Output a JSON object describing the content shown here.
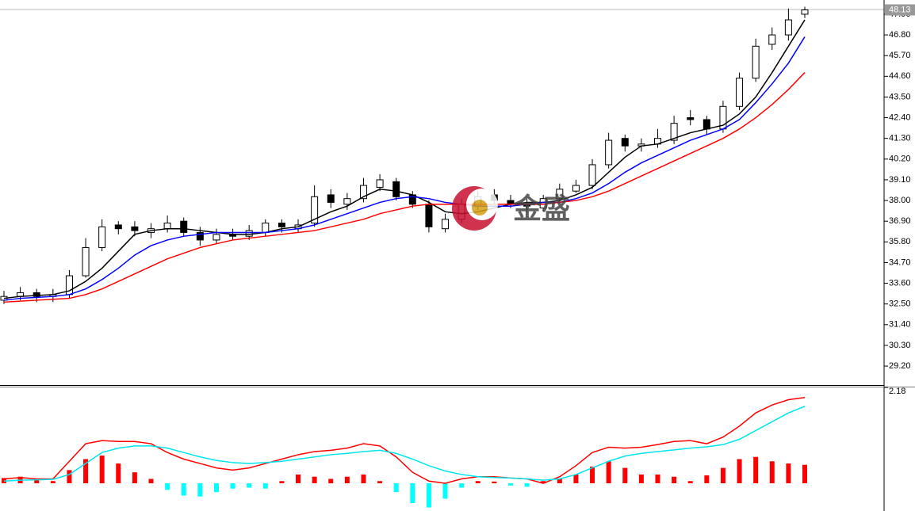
{
  "chart_data": [
    {
      "type": "candlestick",
      "watermark": "金盛",
      "last_price": 48.13,
      "ylim": [
        28.15,
        48.15
      ],
      "yticks": [
        {
          "value": 29.2,
          "label": "29.20"
        },
        {
          "value": 30.3,
          "label": "30.30"
        },
        {
          "value": 31.4,
          "label": "31.40"
        },
        {
          "value": 32.5,
          "label": "32.50"
        },
        {
          "value": 33.6,
          "label": "33.60"
        },
        {
          "value": 34.7,
          "label": "34.70"
        },
        {
          "value": 35.8,
          "label": "35.80"
        },
        {
          "value": 36.9,
          "label": "36.90"
        },
        {
          "value": 38,
          "label": "38.00"
        },
        {
          "value": 39.1,
          "label": "39.10"
        },
        {
          "value": 40.2,
          "label": "40.20"
        },
        {
          "value": 41.3,
          "label": "41.30"
        },
        {
          "value": 42.4,
          "label": "42.40"
        },
        {
          "value": 43.5,
          "label": "43.50"
        },
        {
          "value": 44.6,
          "label": "44.60"
        },
        {
          "value": 45.7,
          "label": "45.70"
        },
        {
          "value": 46.8,
          "label": "46.80"
        },
        {
          "value": 47.9,
          "label": "47.90"
        }
      ],
      "open": [
        32.7,
        32.9,
        33.1,
        32.9,
        33.0,
        34.0,
        35.5,
        36.7,
        36.6,
        36.3,
        36.5,
        36.9,
        36.3,
        35.9,
        36.2,
        36.1,
        36.3,
        36.8,
        36.5,
        36.8,
        38.3,
        37.8,
        38.1,
        38.7,
        39.0,
        38.3,
        37.8,
        36.5,
        37.0,
        37.7,
        38.3,
        38.0,
        37.8,
        37.6,
        38.1,
        38.5,
        38.8,
        39.9,
        41.3,
        40.9,
        41.0,
        41.2,
        42.4,
        42.3,
        41.8,
        43.0,
        44.5,
        46.3,
        46.8,
        47.9
      ],
      "high": [
        33.2,
        33.4,
        33.3,
        33.3,
        34.3,
        36.0,
        37.0,
        36.9,
        36.9,
        36.8,
        37.2,
        37.1,
        36.6,
        36.5,
        36.5,
        36.7,
        37.0,
        37.0,
        37.0,
        38.8,
        38.6,
        38.4,
        39.2,
        39.4,
        39.2,
        38.5,
        38.0,
        37.3,
        38.1,
        38.5,
        38.6,
        38.3,
        38.1,
        38.3,
        38.9,
        39.1,
        40.2,
        41.6,
        41.5,
        41.3,
        41.8,
        42.5,
        42.8,
        42.5,
        43.3,
        44.8,
        46.6,
        47.2,
        48.2,
        48.3
      ],
      "low": [
        32.5,
        32.7,
        32.6,
        32.6,
        32.8,
        33.9,
        35.3,
        36.2,
        36.1,
        36.0,
        36.3,
        36.1,
        35.6,
        35.7,
        35.9,
        35.9,
        36.1,
        36.3,
        36.3,
        36.6,
        37.6,
        37.5,
        37.9,
        38.5,
        38.0,
        37.6,
        36.3,
        36.3,
        36.8,
        37.5,
        37.8,
        37.6,
        37.4,
        37.4,
        37.9,
        38.4,
        38.6,
        39.7,
        40.6,
        40.6,
        40.8,
        41.0,
        42.0,
        41.5,
        41.6,
        42.8,
        44.3,
        46.0,
        46.5,
        47.7
      ],
      "close": [
        32.9,
        33.1,
        32.9,
        33.0,
        34.0,
        35.5,
        36.6,
        36.5,
        36.4,
        36.5,
        36.8,
        36.3,
        35.9,
        36.2,
        36.1,
        36.4,
        36.8,
        36.6,
        36.7,
        38.2,
        37.9,
        38.1,
        38.8,
        39.1,
        38.2,
        37.8,
        36.6,
        37.0,
        37.8,
        38.2,
        38.0,
        37.8,
        37.7,
        38.1,
        38.6,
        38.8,
        39.9,
        41.2,
        40.9,
        41.0,
        41.3,
        42.1,
        42.3,
        41.8,
        43.0,
        44.5,
        46.2,
        46.8,
        47.6,
        48.13
      ],
      "up_color": "#ffffff",
      "down_color": "#000000",
      "series": [
        {
          "color": "#000000",
          "values": [
            32.8,
            32.9,
            32.95,
            33.0,
            33.2,
            33.7,
            34.4,
            35.3,
            36.2,
            36.4,
            36.5,
            36.5,
            36.4,
            36.3,
            36.2,
            36.2,
            36.3,
            36.5,
            36.6,
            37.0,
            37.4,
            37.7,
            38.2,
            38.6,
            38.5,
            38.3,
            37.9,
            37.4,
            37.3,
            37.4,
            37.6,
            37.8,
            37.9,
            37.9,
            38.0,
            38.3,
            38.7,
            39.5,
            40.3,
            40.9,
            41.0,
            41.3,
            41.6,
            41.8,
            42.0,
            42.6,
            43.5,
            44.8,
            46.2,
            47.6
          ]
        },
        {
          "color": "#0000ff",
          "values": [
            32.7,
            32.8,
            32.85,
            32.9,
            33.0,
            33.3,
            33.8,
            34.4,
            35.1,
            35.6,
            35.9,
            36.1,
            36.2,
            36.3,
            36.3,
            36.3,
            36.3,
            36.4,
            36.5,
            36.7,
            37.0,
            37.3,
            37.6,
            37.9,
            38.1,
            38.2,
            38.1,
            37.9,
            37.8,
            37.7,
            37.7,
            37.7,
            37.8,
            37.9,
            37.9,
            38.1,
            38.4,
            38.9,
            39.5,
            40.0,
            40.4,
            40.8,
            41.2,
            41.5,
            41.8,
            42.3,
            43.2,
            44.2,
            45.3,
            46.7
          ]
        },
        {
          "color": "#ff0000",
          "values": [
            32.6,
            32.65,
            32.7,
            32.75,
            32.8,
            33.0,
            33.3,
            33.7,
            34.1,
            34.5,
            34.9,
            35.2,
            35.5,
            35.7,
            35.9,
            36.0,
            36.1,
            36.2,
            36.3,
            36.4,
            36.6,
            36.8,
            37.0,
            37.3,
            37.5,
            37.7,
            37.8,
            37.8,
            37.8,
            37.8,
            37.8,
            37.8,
            37.8,
            37.8,
            37.9,
            38.0,
            38.2,
            38.5,
            38.9,
            39.3,
            39.7,
            40.1,
            40.5,
            40.9,
            41.3,
            41.8,
            42.4,
            43.1,
            43.9,
            44.8
          ]
        }
      ]
    },
    {
      "type": "macd",
      "ylim": [
        -0.63,
        2.18
      ],
      "yticks": [
        2.18
      ],
      "values": [
        0.12,
        0.15,
        0.1,
        0.05,
        0.3,
        0.55,
        0.63,
        0.45,
        0.25,
        0.1,
        -0.15,
        -0.28,
        -0.3,
        -0.2,
        -0.12,
        -0.1,
        -0.12,
        0.05,
        0.2,
        0.15,
        0.1,
        0.15,
        0.2,
        0.05,
        -0.2,
        -0.45,
        -0.55,
        -0.35,
        -0.1,
        0.05,
        0.04,
        -0.05,
        -0.08,
        0.05,
        0.1,
        0.2,
        0.38,
        0.5,
        0.35,
        0.2,
        0.2,
        0.15,
        0.05,
        0.18,
        0.35,
        0.55,
        0.6,
        0.5,
        0.45,
        0.42
      ],
      "up_color": "#ff0000",
      "down_color": "#00ffff",
      "series": [
        {
          "color": "#ff0000",
          "values": [
            0.1,
            0.13,
            0.1,
            0.1,
            0.5,
            0.9,
            0.97,
            0.95,
            0.95,
            0.9,
            0.7,
            0.55,
            0.45,
            0.35,
            0.3,
            0.35,
            0.45,
            0.55,
            0.65,
            0.72,
            0.75,
            0.8,
            0.9,
            0.85,
            0.6,
            0.25,
            0.05,
            0.0,
            0.1,
            0.15,
            0.15,
            0.12,
            0.1,
            0.0,
            0.15,
            0.4,
            0.7,
            0.82,
            0.8,
            0.82,
            0.88,
            0.95,
            0.97,
            0.9,
            1.05,
            1.3,
            1.6,
            1.78,
            1.9,
            1.95
          ]
        },
        {
          "color": "#00e5ee",
          "values": [
            0.05,
            0.07,
            0.08,
            0.09,
            0.2,
            0.45,
            0.7,
            0.8,
            0.85,
            0.85,
            0.8,
            0.7,
            0.6,
            0.52,
            0.47,
            0.45,
            0.47,
            0.5,
            0.55,
            0.6,
            0.65,
            0.68,
            0.72,
            0.75,
            0.68,
            0.55,
            0.4,
            0.28,
            0.2,
            0.15,
            0.13,
            0.12,
            0.1,
            0.07,
            0.1,
            0.2,
            0.35,
            0.5,
            0.62,
            0.68,
            0.72,
            0.76,
            0.8,
            0.83,
            0.88,
            1.0,
            1.2,
            1.4,
            1.6,
            1.75
          ]
        }
      ]
    }
  ]
}
